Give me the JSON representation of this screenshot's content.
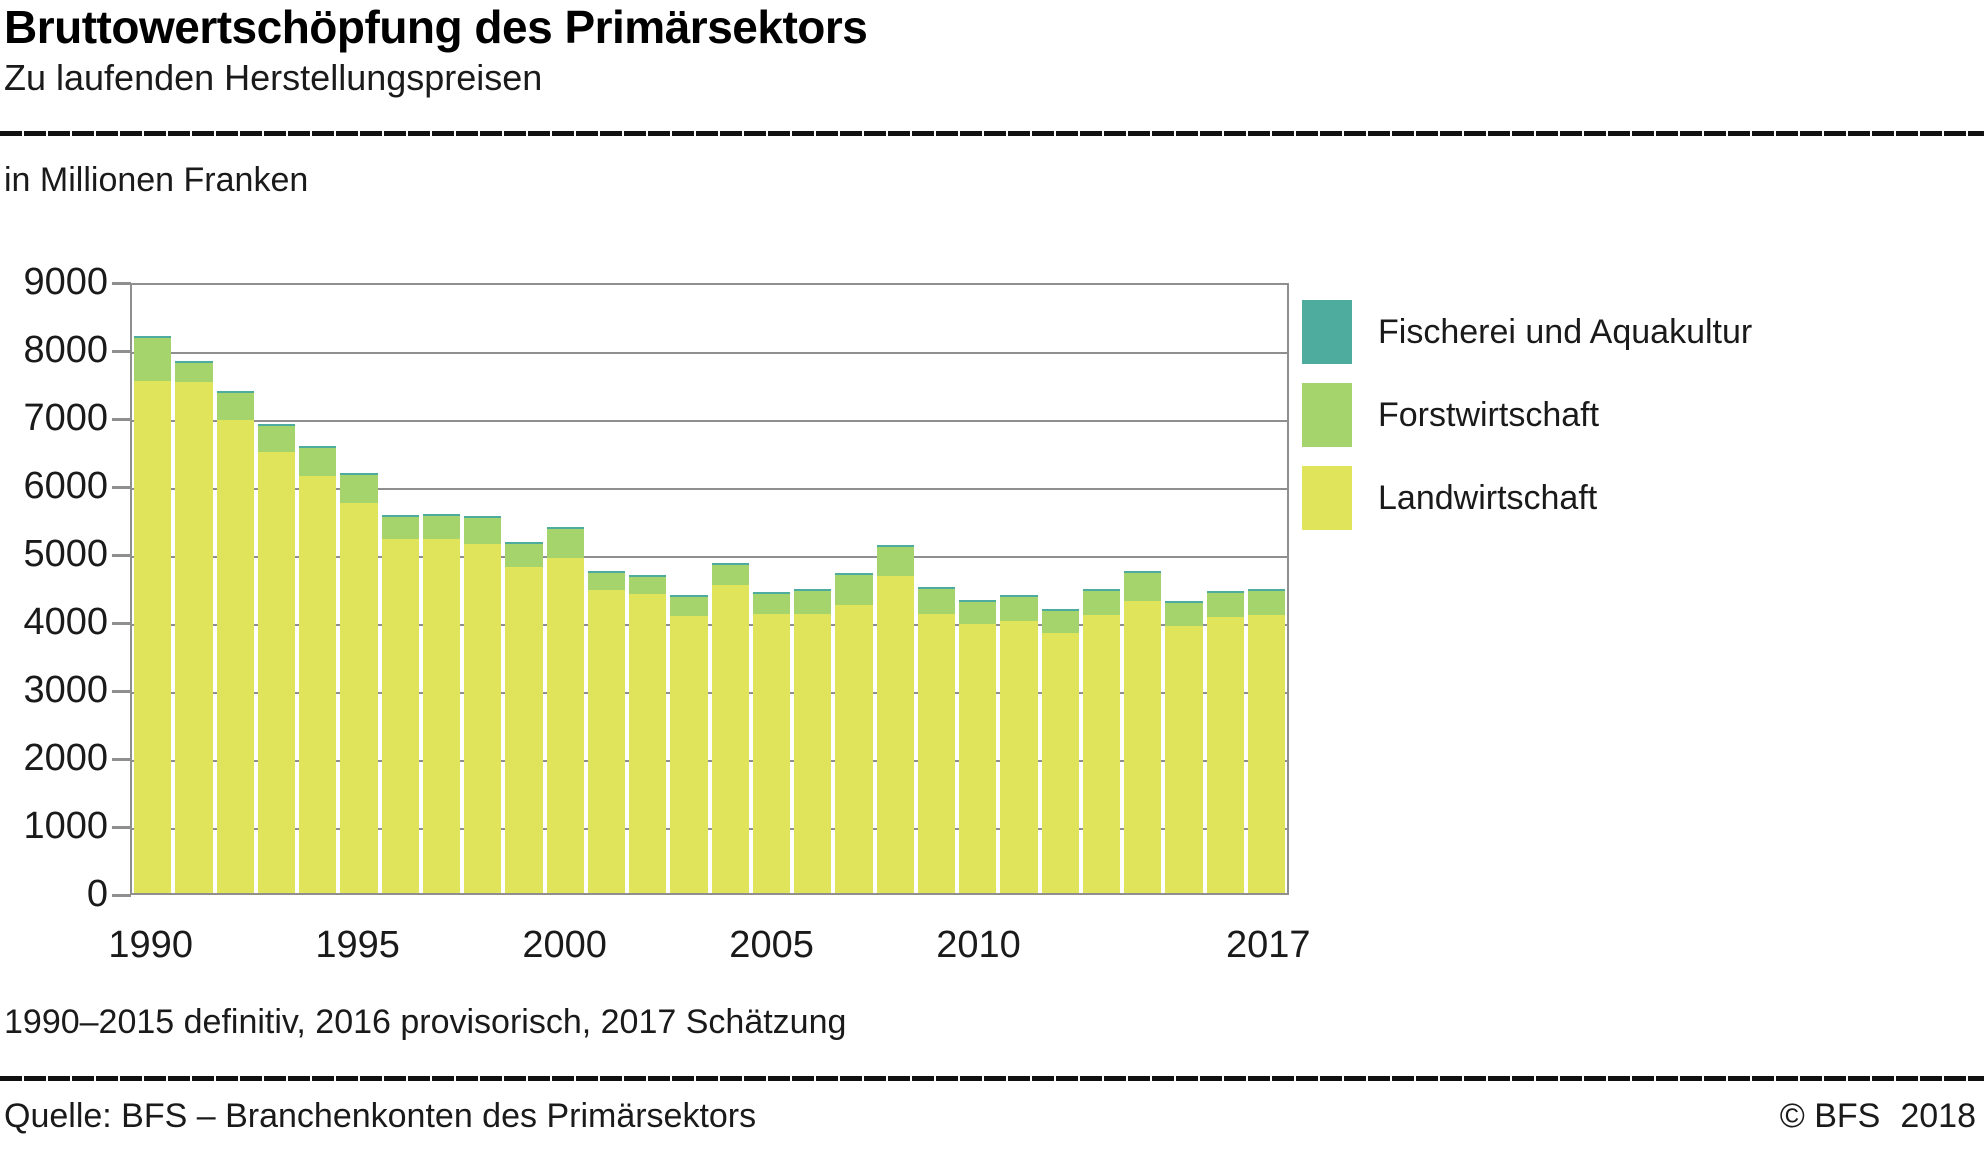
{
  "header": {
    "title": "Bruttowertschöpfung des Primärsektors",
    "subtitle": "Zu laufenden Herstellungspreisen"
  },
  "unit_label": "in Millionen Franken",
  "footnote": "1990–2015 definitiv, 2016 provisorisch, 2017 Schätzung",
  "footer": {
    "source": "Quelle: BFS – Branchenkonten des Primärsektors",
    "copyright": "© BFS",
    "year": "2018"
  },
  "colors": {
    "fischerei": "#4DAC9D",
    "forstwirtschaft": "#A5D46C",
    "landwirtschaft": "#DFE45A",
    "grid": "#8F8F8F",
    "rule": "#111111"
  },
  "legend": {
    "items": [
      {
        "label": "Fischerei und Aquakultur",
        "color": "#4DAC9D"
      },
      {
        "label": "Forstwirtschaft",
        "color": "#A5D46C"
      },
      {
        "label": "Landwirtschaft",
        "color": "#DFE45A"
      }
    ]
  },
  "chart_data": {
    "type": "bar",
    "stacked": true,
    "title": "Bruttowertschöpfung des Primärsektors",
    "subtitle": "Zu laufenden Herstellungspreisen",
    "xlabel": "",
    "ylabel": "in Millionen Franken",
    "ylim": [
      0,
      9000
    ],
    "ytick_step": 1000,
    "grid": true,
    "legend_position": "right",
    "categories": [
      "1990",
      "1991",
      "1992",
      "1993",
      "1994",
      "1995",
      "1996",
      "1997",
      "1998",
      "1999",
      "2000",
      "2001",
      "2002",
      "2003",
      "2004",
      "2005",
      "2006",
      "2007",
      "2008",
      "2009",
      "2010",
      "2011",
      "2012",
      "2013",
      "2014",
      "2015",
      "2016",
      "2017"
    ],
    "x_tick_labels": [
      {
        "label": "1990",
        "index": 0
      },
      {
        "label": "1995",
        "index": 5
      },
      {
        "label": "2000",
        "index": 10
      },
      {
        "label": "2005",
        "index": 15
      },
      {
        "label": "2010",
        "index": 20
      },
      {
        "label": "2017",
        "index": 27
      }
    ],
    "series": [
      {
        "name": "Landwirtschaft",
        "color": "#DFE45A",
        "values": [
          7530,
          7520,
          6950,
          6480,
          6130,
          5730,
          5200,
          5200,
          5130,
          4790,
          4930,
          4450,
          4390,
          4080,
          4530,
          4100,
          4100,
          4240,
          4660,
          4100,
          3960,
          4000,
          3830,
          4090,
          4290,
          3920,
          4060,
          4090
        ]
      },
      {
        "name": "Forstwirtschaft",
        "color": "#A5D46C",
        "values": [
          625,
          270,
          410,
          385,
          410,
          420,
          330,
          340,
          380,
          340,
          430,
          250,
          250,
          270,
          290,
          290,
          340,
          440,
          430,
          370,
          320,
          360,
          320,
          350,
          410,
          340,
          350,
          350
        ]
      },
      {
        "name": "Fischerei und Aquakultur",
        "color": "#4DAC9D",
        "values": [
          35,
          35,
          30,
          30,
          30,
          30,
          30,
          30,
          30,
          30,
          30,
          30,
          30,
          30,
          30,
          30,
          30,
          30,
          30,
          30,
          30,
          30,
          30,
          30,
          30,
          30,
          30,
          30
        ]
      }
    ],
    "totals": [
      8190,
      7825,
      7390,
      6895,
      6570,
      6180,
      5560,
      5570,
      5540,
      5160,
      5390,
      4730,
      4670,
      4380,
      4850,
      4420,
      4470,
      4710,
      5120,
      4500,
      4310,
      4390,
      4180,
      4470,
      4730,
      4290,
      4440,
      4470
    ]
  }
}
